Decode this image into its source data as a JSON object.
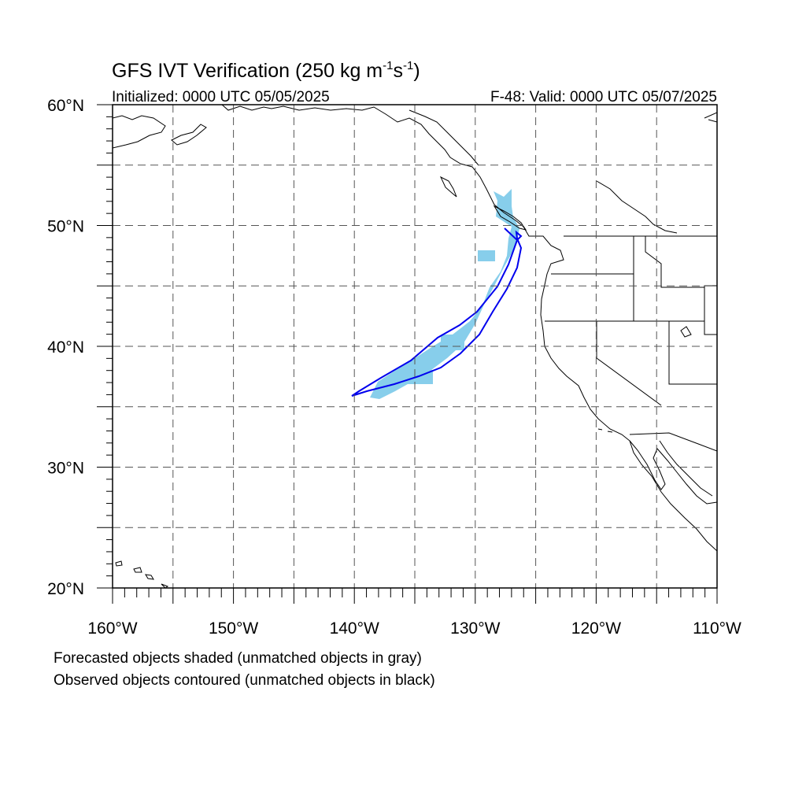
{
  "title": {
    "main": "GFS IVT Verification (250 kg m",
    "sup1": "-1",
    "mid": "s",
    "sup2": "-1",
    "end": ")"
  },
  "subtitle_left": "Initialized: 0000 UTC 05/05/2025",
  "subtitle_right": "F-48: Valid: 0000 UTC 05/07/2025",
  "footnotes": [
    "Forecasted objects shaded (unmatched objects in gray)",
    "Observed objects contoured (unmatched objects in black)"
  ],
  "map": {
    "lon_range": [
      -160,
      -110
    ],
    "lat_range": [
      20,
      60
    ],
    "lon_ticks": [
      {
        "value": -160,
        "label": "160°W"
      },
      {
        "value": -150,
        "label": "150°W"
      },
      {
        "value": -140,
        "label": "140°W"
      },
      {
        "value": -130,
        "label": "130°W"
      },
      {
        "value": -120,
        "label": "120°W"
      },
      {
        "value": -110,
        "label": "110°W"
      }
    ],
    "lat_ticks": [
      {
        "value": 60,
        "label": "60°N"
      },
      {
        "value": 50,
        "label": "50°N"
      },
      {
        "value": 40,
        "label": "40°N"
      },
      {
        "value": 30,
        "label": "30°N"
      },
      {
        "value": 20,
        "label": "20°N"
      }
    ],
    "grid_lon_step": 5,
    "grid_lat_step": 5,
    "grid_style": "dashed",
    "colors": {
      "forecast_fill": "#87ceeb",
      "observed_contour": "#0000ee",
      "coastline": "#000000",
      "grid": "#555555"
    },
    "forecast_object": {
      "description_lonlat": [
        [
          -128.2,
          53.0
        ],
        [
          -127.6,
          52.0
        ],
        [
          -127.5,
          50.6
        ],
        [
          -126.2,
          49.6
        ],
        [
          -126.6,
          48.5
        ],
        [
          -126.8,
          47.0
        ],
        [
          -127.3,
          45.5
        ],
        [
          -128.2,
          44.3
        ],
        [
          -128.8,
          42.8
        ],
        [
          -129.8,
          41.6
        ],
        [
          -131.2,
          40.4
        ],
        [
          -132.8,
          39.5
        ],
        [
          -134.3,
          38.5
        ],
        [
          -135.8,
          37.5
        ],
        [
          -137.4,
          36.6
        ],
        [
          -138.3,
          35.9
        ],
        [
          -137.6,
          35.8
        ],
        [
          -136.2,
          36.3
        ],
        [
          -134.6,
          37.2
        ],
        [
          -133.2,
          38.1
        ],
        [
          -131.8,
          39.2
        ],
        [
          -130.6,
          40.8
        ],
        [
          -129.9,
          42.2
        ],
        [
          -129.2,
          43.7
        ],
        [
          -128.6,
          45.0
        ],
        [
          -127.9,
          46.8
        ],
        [
          -128.7,
          47.5
        ],
        [
          -128.7,
          48.4
        ],
        [
          -128.3,
          49.5
        ],
        [
          -128.4,
          50.7
        ],
        [
          -128.4,
          52.4
        ]
      ]
    },
    "observed_object": {
      "description_lonlat": [
        [
          -127.2,
          50.3
        ],
        [
          -126.4,
          49.3
        ],
        [
          -127.1,
          47.3
        ],
        [
          -128.0,
          45.5
        ],
        [
          -129.7,
          43.4
        ],
        [
          -131.0,
          42.2
        ],
        [
          -132.8,
          41.4
        ],
        [
          -134.9,
          39.7
        ],
        [
          -137.4,
          38.1
        ],
        [
          -139.2,
          37.0
        ],
        [
          -140.2,
          36.0
        ],
        [
          -138.9,
          36.4
        ],
        [
          -136.6,
          37.0
        ],
        [
          -134.6,
          37.7
        ],
        [
          -132.8,
          38.4
        ],
        [
          -131.2,
          39.5
        ],
        [
          -129.7,
          41.0
        ],
        [
          -128.9,
          42.8
        ],
        [
          -127.9,
          44.7
        ],
        [
          -126.9,
          46.6
        ],
        [
          -126.6,
          48.1
        ],
        [
          -126.2,
          49.0
        ],
        [
          -126.8,
          49.6
        ]
      ]
    }
  }
}
